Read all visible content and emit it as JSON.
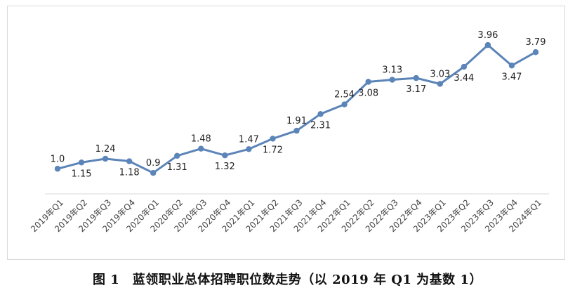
{
  "caption": "图 1　蓝领职业总体招聘职位数走势（以 2019 年 Q1 为基数 1）",
  "chart_data": {
    "type": "line",
    "categories": [
      "2019年Q1",
      "2019年Q2",
      "2019年Q3",
      "2019年Q4",
      "2020年Q1",
      "2020年Q2",
      "2020年Q3",
      "2020年Q4",
      "2021年Q1",
      "2021年Q2",
      "2021年Q3",
      "2021年Q4",
      "2022年Q1",
      "2022年Q2",
      "2022年Q3",
      "2022年Q4",
      "2023年Q1",
      "2023年Q2",
      "2023年Q3",
      "2023年Q4",
      "2024年Q1"
    ],
    "values": [
      1.0,
      1.15,
      1.24,
      1.18,
      0.9,
      1.31,
      1.48,
      1.32,
      1.47,
      1.72,
      1.91,
      2.31,
      2.54,
      3.08,
      3.13,
      3.17,
      3.03,
      3.44,
      3.96,
      3.47,
      3.79
    ],
    "labels": [
      "1.0",
      "1.15",
      "1.24",
      "1.18",
      "0.9",
      "1.31",
      "1.48",
      "1.32",
      "1.47",
      "1.72",
      "1.91",
      "2.31",
      "2.54",
      "3.08",
      "3.13",
      "3.17",
      "3.03",
      "3.44",
      "3.96",
      "3.47",
      "3.79"
    ],
    "label_positions": [
      "above",
      "below",
      "above",
      "below",
      "above",
      "below",
      "above",
      "below",
      "above",
      "below",
      "above",
      "below",
      "above",
      "below",
      "above",
      "below",
      "above",
      "below",
      "above",
      "below",
      "above"
    ],
    "ylim": [
      0.5,
      4.5
    ],
    "grid": false,
    "line_color": "#5b84b8",
    "axis_color": "#d9d9d9"
  }
}
